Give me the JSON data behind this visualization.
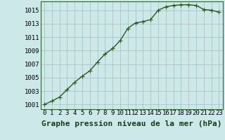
{
  "x": [
    0,
    1,
    2,
    3,
    4,
    5,
    6,
    7,
    8,
    9,
    10,
    11,
    12,
    13,
    14,
    15,
    16,
    17,
    18,
    19,
    20,
    21,
    22,
    23
  ],
  "y": [
    1001.0,
    1001.5,
    1002.1,
    1003.2,
    1004.3,
    1005.2,
    1006.0,
    1007.3,
    1008.5,
    1009.3,
    1010.5,
    1012.3,
    1013.1,
    1013.3,
    1013.6,
    1015.0,
    1015.5,
    1015.7,
    1015.8,
    1015.8,
    1015.7,
    1015.1,
    1015.0,
    1014.7
  ],
  "line_color": "#2d5a1b",
  "marker": "+",
  "marker_size": 4,
  "bg_color": "#cce8e8",
  "grid_color": "#aabbbb",
  "xlabel": "Graphe pression niveau de la mer (hPa)",
  "xlabel_fontsize": 8,
  "yticks": [
    1001,
    1003,
    1005,
    1007,
    1009,
    1011,
    1013,
    1015
  ],
  "xticks": [
    0,
    1,
    2,
    3,
    4,
    5,
    6,
    7,
    8,
    9,
    10,
    11,
    12,
    13,
    14,
    15,
    16,
    17,
    18,
    19,
    20,
    21,
    22,
    23
  ],
  "ylim": [
    1000.3,
    1016.3
  ],
  "xlim": [
    -0.5,
    23.5
  ],
  "tick_fontsize": 6.5,
  "line_width": 1.0
}
